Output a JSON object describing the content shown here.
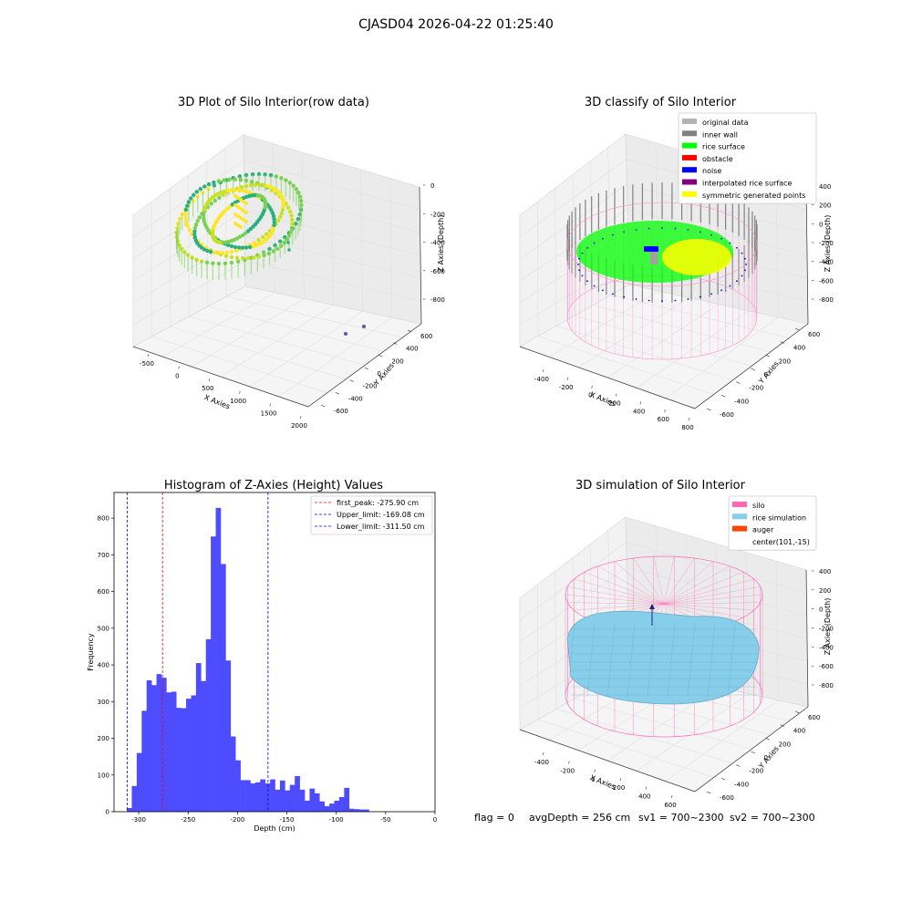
{
  "figure": {
    "suptitle": "CJASD04 2026-04-22 01:25:40",
    "footer": {
      "flag": "flag = 0",
      "avg_depth": "avgDepth = 256 cm",
      "sv1": "sv1 = 700~2300",
      "sv2": "sv2 = 700~2300"
    }
  },
  "chart_data": [
    {
      "id": "raw",
      "type": "scatter",
      "title": "3D Plot of Silo Interior(row data)",
      "xlabel": "X Axies",
      "ylabel": "Y Axies",
      "zlabel": "Z Axies (Depth)",
      "x_ticks": [
        "-500",
        "0",
        "500",
        "1000",
        "1500",
        "2000"
      ],
      "y_ticks": [
        "-600",
        "-400",
        "-200",
        "0",
        "200",
        "400",
        "600"
      ],
      "z_ticks": [
        "0",
        "-200",
        "-400",
        "-600",
        "-800"
      ],
      "grid": true,
      "colormap": [
        "#2ab07f",
        "#7ad151",
        "#c8e020",
        "#fde725"
      ],
      "description_points": "ring of rice-surface points around center, depth about -200 to -400, two outliers near x 2000"
    },
    {
      "id": "classify",
      "type": "scatter",
      "title": "3D classify of Silo Interior",
      "xlabel": "X Axies",
      "ylabel": "Y Axies",
      "zlabel": "Z Axies (Depth)",
      "x_ticks": [
        "-400",
        "-200",
        "0",
        "200",
        "400",
        "600",
        "800"
      ],
      "y_ticks": [
        "-600",
        "-400",
        "-200",
        "0",
        "200",
        "400",
        "600"
      ],
      "z_ticks": [
        "400",
        "200",
        "0",
        "-200",
        "-400",
        "-600",
        "-800"
      ],
      "grid": true,
      "legend_position": "top-right",
      "legend": [
        {
          "label": "original data",
          "color": "#b4b4b4"
        },
        {
          "label": "inner wall",
          "color": "#808080"
        },
        {
          "label": "rice surface",
          "color": "#00ff00"
        },
        {
          "label": "obstacle",
          "color": "#ff0000"
        },
        {
          "label": "noise",
          "color": "#0000ff"
        },
        {
          "label": "interpolated rice surface",
          "color": "#800080"
        },
        {
          "label": "symmetric generated points",
          "color": "#ffff00"
        }
      ]
    },
    {
      "id": "hist",
      "type": "bar",
      "title": "Histogram of Z-Axies (Height) Values",
      "xlabel": "Depth (cm)",
      "ylabel": "Frequency",
      "xlim": [
        -325,
        0
      ],
      "ylim": [
        0,
        870
      ],
      "x_ticks": [
        -300,
        -250,
        -200,
        -150,
        -100,
        -50,
        0
      ],
      "y_ticks": [
        0,
        100,
        200,
        300,
        400,
        500,
        600,
        700,
        800
      ],
      "bar_color": "#4d4dff",
      "bin_start": -312,
      "bin_width": 5,
      "values": [
        10,
        70,
        160,
        275,
        358,
        345,
        375,
        365,
        325,
        327,
        283,
        282,
        308,
        317,
        405,
        356,
        470,
        750,
        828,
        675,
        412,
        205,
        140,
        86,
        86,
        77,
        80,
        88,
        77,
        88,
        60,
        85,
        58,
        73,
        97,
        60,
        30,
        63,
        50,
        28,
        15,
        22,
        30,
        40,
        65,
        8,
        7,
        6,
        6
      ],
      "legend_position": "top-right",
      "lines": [
        {
          "label": "first_peak: -275.90 cm",
          "value": -275.9,
          "color": "#ff0000"
        },
        {
          "label": "Upper_limit: -169.08 cm",
          "value": -169.08,
          "color": "#0000ff"
        },
        {
          "label": "Lower_limit: -311.50 cm",
          "value": -311.5,
          "color": "#0000ff"
        }
      ]
    },
    {
      "id": "sim",
      "type": "scatter",
      "title": "3D simulation of Silo Interior",
      "xlabel": "X Axies",
      "ylabel": "Y Axies",
      "zlabel": "Z Axies (Depth)",
      "x_ticks": [
        "-400",
        "-200",
        "0",
        "200",
        "400",
        "600"
      ],
      "y_ticks": [
        "-600",
        "-400",
        "-200",
        "0",
        "200",
        "400",
        "600"
      ],
      "z_ticks": [
        "400",
        "200",
        "0",
        "-200",
        "-400",
        "-600",
        "-800"
      ],
      "grid": true,
      "legend_position": "top-right",
      "legend": [
        {
          "label": "silo",
          "color": "#ff69b4"
        },
        {
          "label": "rice simulation",
          "color": "#87ceeb"
        },
        {
          "label": "auger",
          "color": "#ff4500"
        },
        {
          "label": "center(101,-15)",
          "color": ""
        }
      ]
    }
  ]
}
